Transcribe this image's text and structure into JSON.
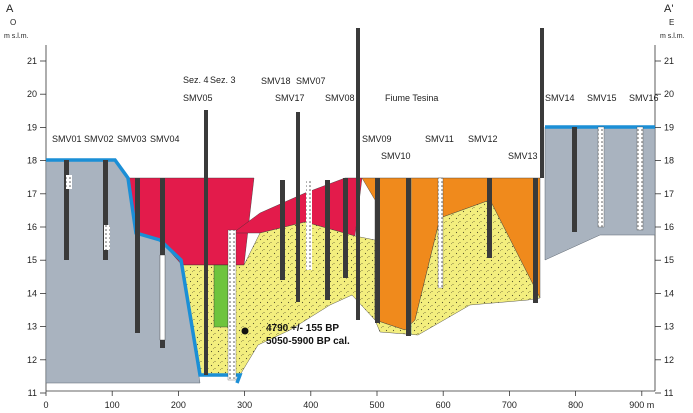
{
  "section": {
    "left_letter": "A",
    "right_letter": "A'",
    "left_orient": "O",
    "right_orient": "E",
    "unit": "m s.l.m."
  },
  "y_axis": {
    "ticks": [
      "21",
      "20",
      "19",
      "18",
      "17",
      "16",
      "15",
      "14",
      "13",
      "12",
      "11"
    ]
  },
  "x_axis": {
    "ticks": [
      "0",
      "100",
      "200",
      "300",
      "400",
      "500",
      "600",
      "700",
      "800",
      "900 m"
    ]
  },
  "wells": [
    "SMV01",
    "SMV02",
    "SMV03",
    "SMV04",
    "SMV05",
    "SMV17",
    "SMV18",
    "SMV07",
    "SMV08",
    "SMV09",
    "SMV10",
    "SMV11",
    "SMV12",
    "SMV13",
    "SMV14",
    "SMV15",
    "SMV16"
  ],
  "sections_labels": [
    "Sez. 4",
    "Sez. 3"
  ],
  "river": "Fiume Tesina",
  "dating": {
    "bp": "4790 +/- 155 BP",
    "cal": "5050-5900 BP cal."
  },
  "colors": {
    "grey": "#a9b3bf",
    "red": "#e31b4b",
    "orange": "#f08a1c",
    "yellow": "#f3ee7e",
    "blue": "#1b8fd6",
    "green": "#6ec43d",
    "dark": "#3a3a3a"
  }
}
